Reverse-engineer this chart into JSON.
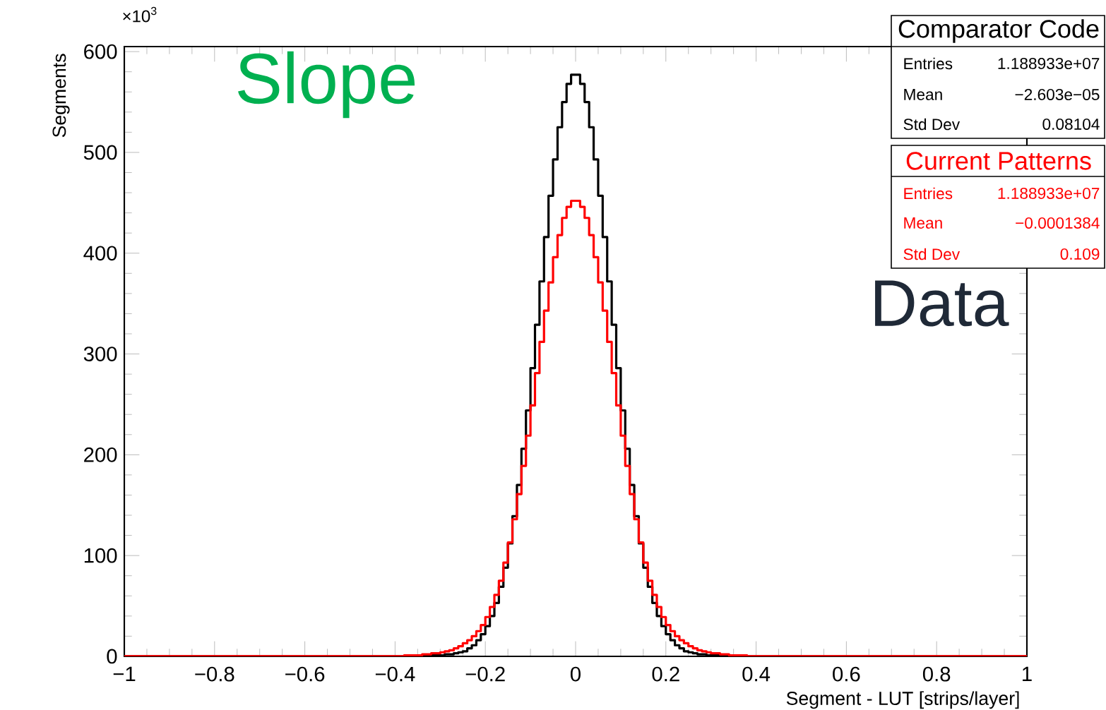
{
  "chart_data": {
    "type": "histogram",
    "xlabel": "Segment - LUT [strips/layer]",
    "ylabel": "Segments",
    "bins": [
      -1,
      -0.45,
      -0.44,
      -0.43,
      -0.42,
      -0.41,
      -0.4,
      -0.39,
      -0.38,
      -0.37,
      -0.36,
      -0.35,
      -0.34,
      -0.33,
      -0.32,
      -0.31,
      -0.3,
      -0.29,
      -0.28,
      -0.27,
      -0.26,
      -0.25,
      -0.24,
      -0.23,
      -0.22,
      -0.21,
      -0.2,
      -0.19,
      -0.18,
      -0.17,
      -0.16,
      -0.15,
      -0.14,
      -0.13,
      -0.12,
      -0.11,
      -0.1,
      -0.09,
      -0.08,
      -0.07,
      -0.06,
      -0.05,
      -0.04,
      -0.03,
      -0.02,
      -0.01,
      0,
      0.01,
      0.02,
      0.03,
      0.04,
      0.05,
      0.06,
      0.07,
      0.08,
      0.09,
      0.1,
      0.11,
      0.12,
      0.13,
      0.14,
      0.15,
      0.16,
      0.17,
      0.18,
      0.19,
      0.2,
      0.21,
      0.22,
      0.23,
      0.24,
      0.25,
      0.26,
      0.27,
      0.28,
      0.29,
      0.3,
      0.31,
      0.32,
      0.33,
      0.34,
      0.35,
      0.36,
      0.37,
      0.38,
      0.39,
      0.4,
      0.41,
      0.42,
      0.43,
      0.44,
      0.45,
      1
    ],
    "series": [
      {
        "name": "Comparator Code",
        "color": "#000000",
        "values": [
          0,
          0,
          0,
          0,
          0,
          0,
          0,
          0,
          0,
          0,
          0,
          0,
          1,
          1,
          1,
          1,
          1,
          2,
          2,
          3,
          4,
          5,
          8,
          11,
          16,
          22,
          30,
          40,
          53,
          69,
          88,
          112,
          139,
          170,
          206,
          244,
          286,
          329,
          372,
          416,
          457,
          493,
          525,
          550,
          568,
          577,
          577,
          568,
          550,
          525,
          493,
          457,
          416,
          372,
          329,
          286,
          244,
          206,
          170,
          139,
          112,
          88,
          69,
          53,
          40,
          30,
          22,
          16,
          11,
          8,
          5,
          4,
          3,
          2,
          2,
          1,
          1,
          1,
          1,
          1,
          0,
          0,
          0,
          0,
          0,
          0,
          0,
          0,
          0,
          0,
          0,
          0
        ]
      },
      {
        "name": "Current Patterns",
        "color": "#ff0000",
        "values": [
          0,
          0,
          0,
          0,
          0,
          0,
          0,
          0,
          1,
          1,
          1,
          1,
          2,
          2,
          3,
          3,
          4,
          5,
          6,
          8,
          10,
          13,
          16,
          20,
          25,
          31,
          39,
          49,
          61,
          75,
          93,
          113,
          136,
          161,
          189,
          219,
          249,
          281,
          312,
          343,
          371,
          396,
          418,
          435,
          446,
          452,
          452,
          446,
          435,
          418,
          396,
          371,
          343,
          312,
          281,
          249,
          219,
          189,
          161,
          136,
          113,
          93,
          75,
          61,
          49,
          39,
          31,
          25,
          20,
          16,
          13,
          10,
          8,
          6,
          5,
          4,
          3,
          3,
          2,
          2,
          1,
          1,
          1,
          1,
          0,
          0,
          0,
          0,
          0,
          0,
          0,
          0
        ]
      }
    ],
    "xlim": [
      -1,
      1
    ],
    "ylim": [
      0,
      605
    ],
    "xticks": [
      {
        "value": -1,
        "label": "−1"
      },
      {
        "value": -0.8,
        "label": "−0.8"
      },
      {
        "value": -0.6,
        "label": "−0.6"
      },
      {
        "value": -0.4,
        "label": "−0.4"
      },
      {
        "value": -0.2,
        "label": "−0.2"
      },
      0,
      0.2,
      0.4,
      0.6,
      0.8,
      1
    ],
    "yticks": [
      0,
      100,
      200,
      300,
      400,
      500,
      600
    ],
    "legend": "top right",
    "annotations": [
      "×10$^{3}$",
      "Slope",
      "Data",
      "Entries",
      "1.188933e+07",
      "Mean",
      "−2.603e−05",
      "Std Dev",
      "0.08104",
      "Entries",
      "1.188933e+07",
      "Mean",
      "−0.0001384",
      "Std Dev",
      "0.109"
    ]
  }
}
